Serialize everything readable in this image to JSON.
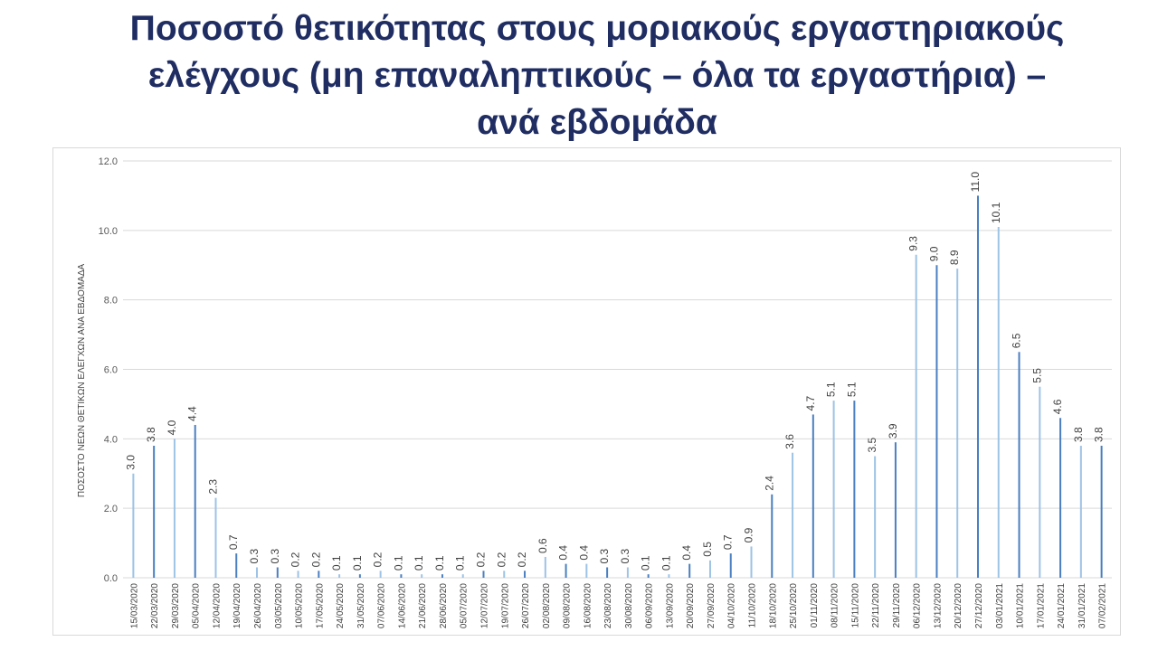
{
  "slide": {
    "title_lines": [
      "Ποσοστό θετικότητας στους μοριακούς εργαστηριακούς",
      "ελέγχους (μη επαναληπτικούς – όλα τα εργαστήρια) –",
      "ανά εβδομάδα"
    ]
  },
  "chart_data": {
    "type": "bar",
    "title": "",
    "xlabel": "",
    "ylabel": "ΠΟΣΟΣΤΟ ΝΕΩΝ ΘΕΤΙΚΩΝ ΕΛΕΓΧΩΝ ΑΝΑ ΕΒΔΟΜΑΔΑ",
    "ylim": [
      0,
      12
    ],
    "yticks": [
      "0.0",
      "2.0",
      "4.0",
      "6.0",
      "8.0",
      "10.0",
      "12.0"
    ],
    "grid": true,
    "legend": "none",
    "colors": {
      "bar_dark": "#4a7fc1",
      "bar_light": "#9dc3e6",
      "grid": "#d9d9d9"
    },
    "categories": [
      "15/03/2020",
      "22/03/2020",
      "29/03/2020",
      "05/04/2020",
      "12/04/2020",
      "19/04/2020",
      "26/04/2020",
      "03/05/2020",
      "10/05/2020",
      "17/05/2020",
      "24/05/2020",
      "31/05/2020",
      "07/06/2020",
      "14/06/2020",
      "21/06/2020",
      "28/06/2020",
      "05/07/2020",
      "12/07/2020",
      "19/07/2020",
      "26/07/2020",
      "02/08/2020",
      "09/08/2020",
      "16/08/2020",
      "23/08/2020",
      "30/08/2020",
      "06/09/2020",
      "13/09/2020",
      "20/09/2020",
      "27/09/2020",
      "04/10/2020",
      "11/10/2020",
      "18/10/2020",
      "25/10/2020",
      "01/11/2020",
      "08/11/2020",
      "15/11/2020",
      "22/11/2020",
      "29/11/2020",
      "06/12/2020",
      "13/12/2020",
      "20/12/2020",
      "27/12/2020",
      "03/01/2021",
      "10/01/2021",
      "17/01/2021",
      "24/01/2021",
      "31/01/2021",
      "07/02/2021"
    ],
    "values": [
      3.0,
      3.8,
      4.0,
      4.4,
      2.3,
      0.7,
      0.3,
      0.3,
      0.2,
      0.2,
      0.1,
      0.1,
      0.2,
      0.1,
      0.1,
      0.1,
      0.1,
      0.2,
      0.2,
      0.2,
      0.6,
      0.4,
      0.4,
      0.3,
      0.3,
      0.1,
      0.1,
      0.4,
      0.5,
      0.7,
      0.9,
      2.4,
      3.6,
      4.7,
      5.1,
      5.1,
      3.5,
      3.9,
      9.3,
      9.0,
      8.9,
      11.0,
      10.1,
      6.5,
      5.5,
      4.6,
      3.8,
      3.8
    ],
    "value_labels": [
      "3.0",
      "3.8",
      "4.0",
      "4.4",
      "2.3",
      "0.7",
      "0.3",
      "0.3",
      "0.2",
      "0.2",
      "0.1",
      "0.1",
      "0.2",
      "0.1",
      "0.1",
      "0.1",
      "0.1",
      "0.2",
      "0.2",
      "0.2",
      "0.6",
      "0.4",
      "0.4",
      "0.3",
      "0.3",
      "0.1",
      "0.1",
      "0.4",
      "0.5",
      "0.7",
      "0.9",
      "2.4",
      "3.6",
      "4.7",
      "5.1",
      "5.1",
      "3.5",
      "3.9",
      "9.3",
      "9.0",
      "8.9",
      "11.0",
      "10.1",
      "6.5",
      "5.5",
      "4.6",
      "3.8",
      "3.8"
    ]
  }
}
